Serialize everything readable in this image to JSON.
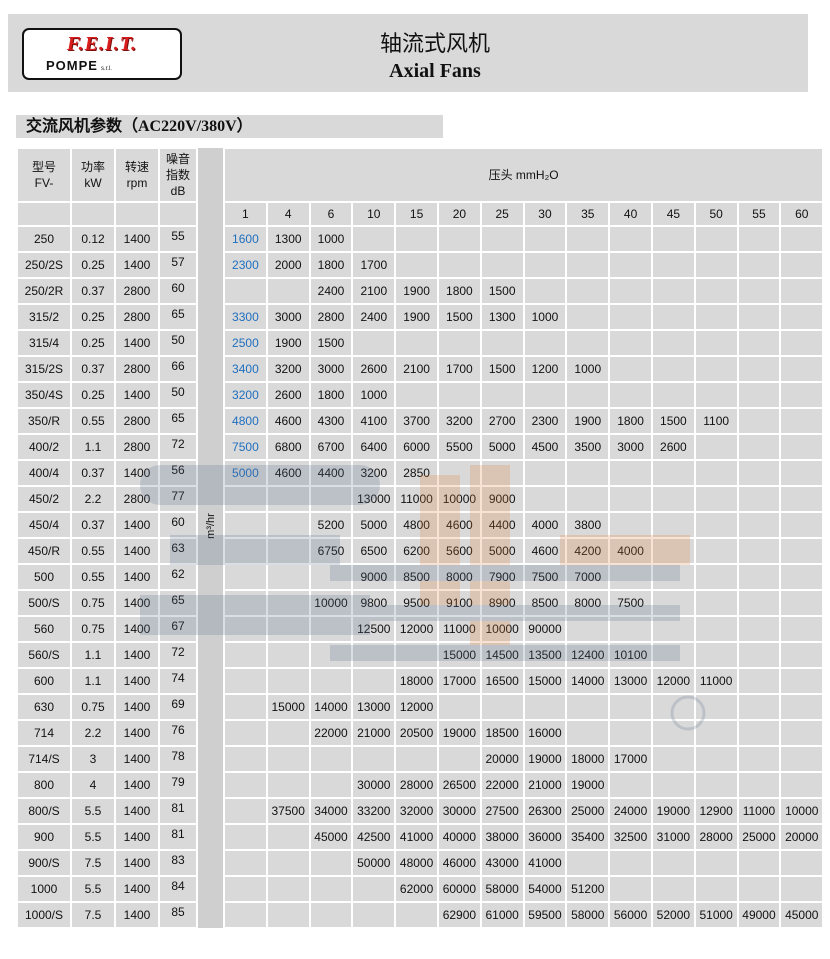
{
  "header": {
    "logo": {
      "brand": "F.E.I.T.",
      "sub": "POMPE",
      "suffix": "s.r.l."
    },
    "title_cn": "轴流式风机",
    "title_en": "Axial Fans"
  },
  "section_title": "交流风机参数（AC220V/380V）",
  "watermark": {
    "text": "star",
    "mark": "®"
  },
  "table": {
    "headers": {
      "model": [
        "型号",
        "FV-"
      ],
      "power": [
        "功率",
        "kW"
      ],
      "speed": [
        "转速",
        "rpm"
      ],
      "noise": [
        "噪音",
        "指数",
        "dB"
      ],
      "pressure": "压头 mmH₂O",
      "flow_unit": "m³/hr"
    },
    "pressure_values": [
      "1",
      "4",
      "6",
      "10",
      "15",
      "20",
      "25",
      "30",
      "35",
      "40",
      "45",
      "50",
      "55",
      "60"
    ],
    "accent_color": "#1f6fbf",
    "rows": [
      {
        "model": "250",
        "kw": "0.12",
        "rpm": "1400",
        "db": "55",
        "flow": [
          "1600",
          "1300",
          "1000",
          "",
          "",
          "",
          "",
          "",
          "",
          "",
          "",
          "",
          "",
          ""
        ]
      },
      {
        "model": "250/2S",
        "kw": "0.25",
        "rpm": "1400",
        "db": "57",
        "flow": [
          "2300",
          "2000",
          "1800",
          "1700",
          "",
          "",
          "",
          "",
          "",
          "",
          "",
          "",
          "",
          ""
        ]
      },
      {
        "model": "250/2R",
        "kw": "0.37",
        "rpm": "2800",
        "db": "60",
        "flow": [
          "",
          "",
          "2400",
          "2100",
          "1900",
          "1800",
          "1500",
          "",
          "",
          "",
          "",
          "",
          "",
          ""
        ]
      },
      {
        "model": "315/2",
        "kw": "0.25",
        "rpm": "2800",
        "db": "65",
        "flow": [
          "3300",
          "3000",
          "2800",
          "2400",
          "1900",
          "1500",
          "1300",
          "1000",
          "",
          "",
          "",
          "",
          "",
          ""
        ]
      },
      {
        "model": "315/4",
        "kw": "0.25",
        "rpm": "1400",
        "db": "50",
        "flow": [
          "2500",
          "1900",
          "1500",
          "",
          "",
          "",
          "",
          "",
          "",
          "",
          "",
          "",
          "",
          ""
        ]
      },
      {
        "model": "315/2S",
        "kw": "0.37",
        "rpm": "2800",
        "db": "66",
        "flow": [
          "3400",
          "3200",
          "3000",
          "2600",
          "2100",
          "1700",
          "1500",
          "1200",
          "1000",
          "",
          "",
          "",
          "",
          ""
        ]
      },
      {
        "model": "350/4S",
        "kw": "0.25",
        "rpm": "1400",
        "db": "50",
        "flow": [
          "3200",
          "2600",
          "1800",
          "1000",
          "",
          "",
          "",
          "",
          "",
          "",
          "",
          "",
          "",
          ""
        ]
      },
      {
        "model": "350/R",
        "kw": "0.55",
        "rpm": "2800",
        "db": "65",
        "flow": [
          "4800",
          "4600",
          "4300",
          "4100",
          "3700",
          "3200",
          "2700",
          "2300",
          "1900",
          "1800",
          "1500",
          "1100",
          "",
          ""
        ]
      },
      {
        "model": "400/2",
        "kw": "1.1",
        "rpm": "2800",
        "db": "72",
        "flow": [
          "7500",
          "6800",
          "6700",
          "6400",
          "6000",
          "5500",
          "5000",
          "4500",
          "3500",
          "3000",
          "2600",
          "",
          "",
          ""
        ]
      },
      {
        "model": "400/4",
        "kw": "0.37",
        "rpm": "1400",
        "db": "56",
        "flow": [
          "5000",
          "4600",
          "4400",
          "3200",
          "2850",
          "",
          "",
          "",
          "",
          "",
          "",
          "",
          "",
          ""
        ]
      },
      {
        "model": "450/2",
        "kw": "2.2",
        "rpm": "2800",
        "db": "77",
        "flow": [
          "",
          "",
          "",
          "13000",
          "11000",
          "10000",
          "9000",
          "",
          "",
          "",
          "",
          "",
          "",
          ""
        ]
      },
      {
        "model": "450/4",
        "kw": "0.37",
        "rpm": "1400",
        "db": "60",
        "flow": [
          "",
          "",
          "5200",
          "5000",
          "4800",
          "4600",
          "4400",
          "4000",
          "3800",
          "",
          "",
          "",
          "",
          ""
        ]
      },
      {
        "model": "450/R",
        "kw": "0.55",
        "rpm": "1400",
        "db": "63",
        "flow": [
          "",
          "",
          "6750",
          "6500",
          "6200",
          "5600",
          "5000",
          "4600",
          "4200",
          "4000",
          "",
          "",
          "",
          ""
        ]
      },
      {
        "model": "500",
        "kw": "0.55",
        "rpm": "1400",
        "db": "62",
        "flow": [
          "",
          "",
          "",
          "9000",
          "8500",
          "8000",
          "7900",
          "7500",
          "7000",
          "",
          "",
          "",
          "",
          ""
        ]
      },
      {
        "model": "500/S",
        "kw": "0.75",
        "rpm": "1400",
        "db": "65",
        "flow": [
          "",
          "",
          "10000",
          "9800",
          "9500",
          "9100",
          "8900",
          "8500",
          "8000",
          "7500",
          "",
          "",
          "",
          ""
        ]
      },
      {
        "model": "560",
        "kw": "0.75",
        "rpm": "1400",
        "db": "67",
        "flow": [
          "",
          "",
          "",
          "12500",
          "12000",
          "11000",
          "10000",
          "90000",
          "",
          "",
          "",
          "",
          "",
          ""
        ]
      },
      {
        "model": "560/S",
        "kw": "1.1",
        "rpm": "1400",
        "db": "72",
        "flow": [
          "",
          "",
          "",
          "",
          "",
          "15000",
          "14500",
          "13500",
          "12400",
          "10100",
          "",
          "",
          "",
          ""
        ]
      },
      {
        "model": "600",
        "kw": "1.1",
        "rpm": "1400",
        "db": "74",
        "flow": [
          "",
          "",
          "",
          "",
          "18000",
          "17000",
          "16500",
          "15000",
          "14000",
          "13000",
          "12000",
          "11000",
          "",
          ""
        ]
      },
      {
        "model": "630",
        "kw": "0.75",
        "rpm": "1400",
        "db": "69",
        "flow": [
          "",
          "15000",
          "14000",
          "13000",
          "12000",
          "",
          "",
          "",
          "",
          "",
          "",
          "",
          "",
          ""
        ]
      },
      {
        "model": "714",
        "kw": "2.2",
        "rpm": "1400",
        "db": "76",
        "flow": [
          "",
          "",
          "22000",
          "21000",
          "20500",
          "19000",
          "18500",
          "16000",
          "",
          "",
          "",
          "",
          "",
          ""
        ]
      },
      {
        "model": "714/S",
        "kw": "3",
        "rpm": "1400",
        "db": "78",
        "flow": [
          "",
          "",
          "",
          "",
          "",
          "",
          "20000",
          "19000",
          "18000",
          "17000",
          "",
          "",
          "",
          ""
        ]
      },
      {
        "model": "800",
        "kw": "4",
        "rpm": "1400",
        "db": "79",
        "flow": [
          "",
          "",
          "",
          "30000",
          "28000",
          "26500",
          "22000",
          "21000",
          "19000",
          "",
          "",
          "",
          "",
          ""
        ]
      },
      {
        "model": "800/S",
        "kw": "5.5",
        "rpm": "1400",
        "db": "81",
        "flow": [
          "",
          "37500",
          "34000",
          "33200",
          "32000",
          "30000",
          "27500",
          "26300",
          "25000",
          "24000",
          "19000",
          "12900",
          "11000",
          "10000"
        ]
      },
      {
        "model": "900",
        "kw": "5.5",
        "rpm": "1400",
        "db": "81",
        "flow": [
          "",
          "",
          "45000",
          "42500",
          "41000",
          "40000",
          "38000",
          "36000",
          "35400",
          "32500",
          "31000",
          "28000",
          "25000",
          "20000"
        ]
      },
      {
        "model": "900/S",
        "kw": "7.5",
        "rpm": "1400",
        "db": "83",
        "flow": [
          "",
          "",
          "",
          "50000",
          "48000",
          "46000",
          "43000",
          "41000",
          "",
          "",
          "",
          "",
          "",
          ""
        ]
      },
      {
        "model": "1000",
        "kw": "5.5",
        "rpm": "1400",
        "db": "84",
        "flow": [
          "",
          "",
          "",
          "",
          "62000",
          "60000",
          "58000",
          "54000",
          "51200",
          "",
          "",
          "",
          "",
          ""
        ]
      },
      {
        "model": "1000/S",
        "kw": "7.5",
        "rpm": "1400",
        "db": "85",
        "flow": [
          "",
          "",
          "",
          "",
          "",
          "62900",
          "61000",
          "59500",
          "58000",
          "56000",
          "52000",
          "51000",
          "49000",
          "45000"
        ]
      }
    ]
  }
}
